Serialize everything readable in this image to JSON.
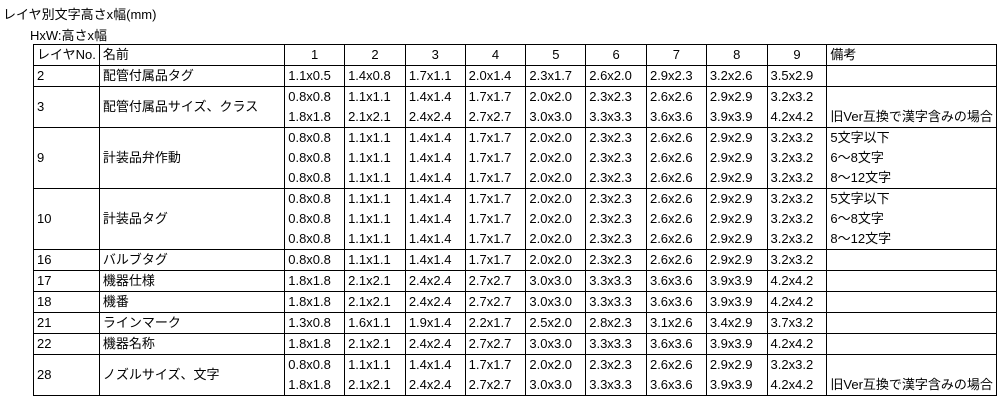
{
  "title": "レイヤ別文字高さx幅(mm)",
  "subtitle": "HxW:高さx幅",
  "table": {
    "headers": [
      "レイヤNo.",
      "名前",
      "1",
      "2",
      "3",
      "4",
      "5",
      "6",
      "7",
      "8",
      "9",
      "備考"
    ],
    "rows": [
      {
        "layer_no": "2",
        "name": "配管付属品タグ",
        "lines": [
          {
            "sizes": [
              "1.1x0.5",
              "1.4x0.8",
              "1.7x1.1",
              "2.0x1.4",
              "2.3x1.7",
              "2.6x2.0",
              "2.9x2.3",
              "3.2x2.6",
              "3.5x2.9"
            ],
            "remark": ""
          }
        ]
      },
      {
        "layer_no": "3",
        "name": "配管付属品サイズ、クラス",
        "lines": [
          {
            "sizes": [
              "0.8x0.8",
              "1.1x1.1",
              "1.4x1.4",
              "1.7x1.7",
              "2.0x2.0",
              "2.3x2.3",
              "2.6x2.6",
              "2.9x2.9",
              "3.2x3.2"
            ],
            "remark": ""
          },
          {
            "sizes": [
              "1.8x1.8",
              "2.1x2.1",
              "2.4x2.4",
              "2.7x2.7",
              "3.0x3.0",
              "3.3x3.3",
              "3.6x3.6",
              "3.9x3.9",
              "4.2x4.2"
            ],
            "remark": "旧Ver互換で漢字含みの場合"
          }
        ]
      },
      {
        "layer_no": "9",
        "name": "計装品弁作動",
        "lines": [
          {
            "sizes": [
              "0.8x0.8",
              "1.1x1.1",
              "1.4x1.4",
              "1.7x1.7",
              "2.0x2.0",
              "2.3x2.3",
              "2.6x2.6",
              "2.9x2.9",
              "3.2x3.2"
            ],
            "remark": "5文字以下"
          },
          {
            "sizes": [
              "0.8x0.8",
              "1.1x1.1",
              "1.4x1.4",
              "1.7x1.7",
              "2.0x2.0",
              "2.3x2.3",
              "2.6x2.6",
              "2.9x2.9",
              "3.2x3.2"
            ],
            "remark": "6～8文字"
          },
          {
            "sizes": [
              "0.8x0.8",
              "1.1x1.1",
              "1.4x1.4",
              "1.7x1.7",
              "2.0x2.0",
              "2.3x2.3",
              "2.6x2.6",
              "2.9x2.9",
              "3.2x3.2"
            ],
            "remark": "8～12文字"
          }
        ]
      },
      {
        "layer_no": "10",
        "name": "計装品タグ",
        "lines": [
          {
            "sizes": [
              "0.8x0.8",
              "1.1x1.1",
              "1.4x1.4",
              "1.7x1.7",
              "2.0x2.0",
              "2.3x2.3",
              "2.6x2.6",
              "2.9x2.9",
              "3.2x3.2"
            ],
            "remark": "5文字以下"
          },
          {
            "sizes": [
              "0.8x0.8",
              "1.1x1.1",
              "1.4x1.4",
              "1.7x1.7",
              "2.0x2.0",
              "2.3x2.3",
              "2.6x2.6",
              "2.9x2.9",
              "3.2x3.2"
            ],
            "remark": "6～8文字"
          },
          {
            "sizes": [
              "0.8x0.8",
              "1.1x1.1",
              "1.4x1.4",
              "1.7x1.7",
              "2.0x2.0",
              "2.3x2.3",
              "2.6x2.6",
              "2.9x2.9",
              "3.2x3.2"
            ],
            "remark": "8～12文字"
          }
        ]
      },
      {
        "layer_no": "16",
        "name": "バルブタグ",
        "lines": [
          {
            "sizes": [
              "0.8x0.8",
              "1.1x1.1",
              "1.4x1.4",
              "1.7x1.7",
              "2.0x2.0",
              "2.3x2.3",
              "2.6x2.6",
              "2.9x2.9",
              "3.2x3.2"
            ],
            "remark": ""
          }
        ]
      },
      {
        "layer_no": "17",
        "name": "機器仕様",
        "lines": [
          {
            "sizes": [
              "1.8x1.8",
              "2.1x2.1",
              "2.4x2.4",
              "2.7x2.7",
              "3.0x3.0",
              "3.3x3.3",
              "3.6x3.6",
              "3.9x3.9",
              "4.2x4.2"
            ],
            "remark": ""
          }
        ]
      },
      {
        "layer_no": "18",
        "name": "機番",
        "lines": [
          {
            "sizes": [
              "1.8x1.8",
              "2.1x2.1",
              "2.4x2.4",
              "2.7x2.7",
              "3.0x3.0",
              "3.3x3.3",
              "3.6x3.6",
              "3.9x3.9",
              "4.2x4.2"
            ],
            "remark": ""
          }
        ]
      },
      {
        "layer_no": "21",
        "name": "ラインマーク",
        "lines": [
          {
            "sizes": [
              "1.3x0.8",
              "1.6x1.1",
              "1.9x1.4",
              "2.2x1.7",
              "2.5x2.0",
              "2.8x2.3",
              "3.1x2.6",
              "3.4x2.9",
              "3.7x3.2"
            ],
            "remark": ""
          }
        ]
      },
      {
        "layer_no": "22",
        "name": "機器名称",
        "lines": [
          {
            "sizes": [
              "1.8x1.8",
              "2.1x2.1",
              "2.4x2.4",
              "2.7x2.7",
              "3.0x3.0",
              "3.3x3.3",
              "3.6x3.6",
              "3.9x3.9",
              "4.2x4.2"
            ],
            "remark": ""
          }
        ]
      },
      {
        "layer_no": "28",
        "name": "ノズルサイズ、文字",
        "lines": [
          {
            "sizes": [
              "0.8x0.8",
              "1.1x1.1",
              "1.4x1.4",
              "1.7x1.7",
              "2.0x2.0",
              "2.3x2.3",
              "2.6x2.6",
              "2.9x2.9",
              "3.2x3.2"
            ],
            "remark": ""
          },
          {
            "sizes": [
              "1.8x1.8",
              "2.1x2.1",
              "2.4x2.4",
              "2.7x2.7",
              "3.0x3.0",
              "3.3x3.3",
              "3.6x3.6",
              "3.9x3.9",
              "4.2x4.2"
            ],
            "remark": "旧Ver互換で漢字含みの場合"
          }
        ]
      }
    ]
  },
  "colors": {
    "background": "#ffffff",
    "border": "#000000",
    "text": "#000000"
  }
}
